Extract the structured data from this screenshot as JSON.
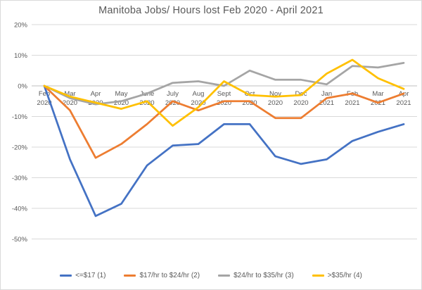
{
  "title": "Manitoba Jobs/ Hours lost Feb 2020 - April 2021",
  "colors": {
    "series_blue": "#4472C4",
    "series_orange": "#ED7D31",
    "series_gray": "#A5A5A5",
    "series_yellow": "#FFC000",
    "gridline": "#D9D9D9",
    "axis_line": "#BFBFBF",
    "text": "#595959"
  },
  "chart_data": {
    "type": "line",
    "title": "Manitoba Jobs/ Hours lost Feb 2020 - April 2021",
    "xlabel": "",
    "ylabel": "",
    "ylim": [
      -50,
      20
    ],
    "y_ticks": [
      20,
      10,
      0,
      -10,
      -20,
      -30,
      -40,
      -50
    ],
    "y_tick_suffix": "%",
    "grid": true,
    "legend_position": "bottom",
    "categories": [
      "Feb 2020",
      "Mar 2020",
      "Apr 2020",
      "May 2020",
      "June 2020",
      "July 2020",
      "Aug 2020",
      "Sept 2020",
      "Oct 2020",
      "Nov 2020",
      "Dec 2020",
      "Jan 2021",
      "Feb 2021",
      "Mar 2021",
      "Apr 2021"
    ],
    "series": [
      {
        "name": "<=$17 (1)",
        "color": "#4472C4",
        "values": [
          0,
          -24,
          -42.5,
          -38.5,
          -26,
          -19.5,
          -19,
          -12.5,
          -12.5,
          -23,
          -25.5,
          -24,
          -18,
          -15,
          -12.5
        ]
      },
      {
        "name": "$17/hr to $24/hr (2)",
        "color": "#ED7D31",
        "values": [
          0,
          -8,
          -23.5,
          -19,
          -12.5,
          -5,
          -8,
          -5,
          -5,
          -10.5,
          -10.5,
          -4,
          -2.5,
          -5.5,
          -2.5
        ]
      },
      {
        "name": "$24/hr to $35/hr (3)",
        "color": "#A5A5A5",
        "values": [
          0,
          -4,
          -6,
          -5,
          -2.5,
          1,
          1.5,
          0,
          5,
          2,
          2,
          0.5,
          6.5,
          6,
          7.5
        ]
      },
      {
        "name": ">$35/hr (4)",
        "color": "#FFC000",
        "values": [
          0,
          -3.5,
          -5.5,
          -7.5,
          -5,
          -13,
          -7,
          1.5,
          -3,
          -3.5,
          -3,
          4,
          8.5,
          2.5,
          -1
        ]
      }
    ]
  }
}
